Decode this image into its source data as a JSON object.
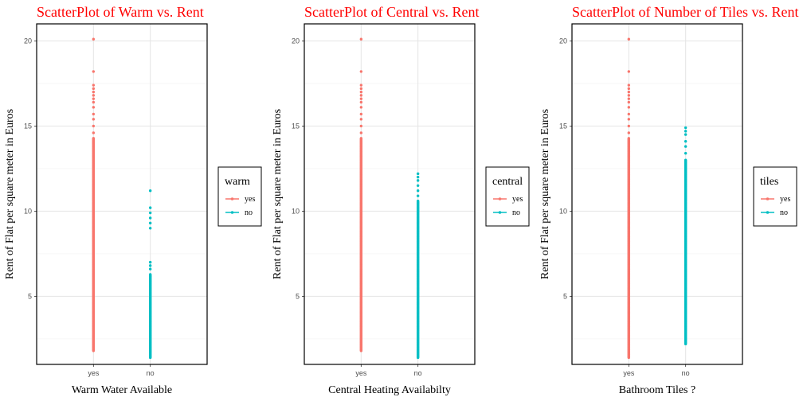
{
  "chart_data": [
    {
      "type": "scatter",
      "title": "ScatterPlot of Warm vs. Rent",
      "xlabel": "Warm Water Available",
      "ylabel": "Rent of Flat per square meter in Euros",
      "categories": [
        "yes",
        "no"
      ],
      "ylim": [
        1.0,
        21.0
      ],
      "yticks": [
        5,
        10,
        15,
        20
      ],
      "grid": true,
      "legend": {
        "title": "warm",
        "position": "right",
        "entries": [
          "yes",
          "no"
        ]
      },
      "series": [
        {
          "name": "yes",
          "color": "#F8766D",
          "x": "yes",
          "min": 1.8,
          "max": 20.1,
          "dense_max": 14.3,
          "sparse": [
            14.6,
            15.0,
            15.4,
            15.7,
            16.1,
            16.4,
            16.6,
            16.8,
            17.0,
            17.2,
            17.4,
            18.2,
            20.1
          ]
        },
        {
          "name": "no",
          "color": "#00BFC4",
          "x": "no",
          "min": 1.4,
          "max": 11.2,
          "dense_max": 6.3,
          "sparse": [
            6.6,
            6.8,
            7.0,
            9.0,
            9.3,
            9.6,
            9.9,
            10.2,
            11.2
          ]
        }
      ]
    },
    {
      "type": "scatter",
      "title": "ScatterPlot of Central vs. Rent",
      "xlabel": "Central Heating Availabilty",
      "ylabel": "Rent of Flat per square meter in Euros",
      "categories": [
        "yes",
        "no"
      ],
      "ylim": [
        1.0,
        21.0
      ],
      "yticks": [
        5,
        10,
        15,
        20
      ],
      "grid": true,
      "legend": {
        "title": "central",
        "position": "right",
        "entries": [
          "yes",
          "no"
        ]
      },
      "series": [
        {
          "name": "yes",
          "color": "#F8766D",
          "x": "yes",
          "min": 1.8,
          "max": 20.1,
          "dense_max": 14.3,
          "sparse": [
            14.6,
            15.0,
            15.4,
            15.7,
            16.1,
            16.4,
            16.6,
            16.8,
            17.0,
            17.2,
            17.4,
            18.2,
            20.1
          ]
        },
        {
          "name": "no",
          "color": "#00BFC4",
          "x": "no",
          "min": 1.4,
          "max": 12.2,
          "dense_max": 10.6,
          "sparse": [
            10.9,
            11.2,
            11.5,
            11.8,
            12.0,
            12.2
          ]
        }
      ]
    },
    {
      "type": "scatter",
      "title": "ScatterPlot of Number of Tiles vs. Rent",
      "xlabel": "Bathroom Tiles ?",
      "ylabel": "Rent of Flat per square meter in Euros",
      "categories": [
        "yes",
        "no"
      ],
      "ylim": [
        1.0,
        21.0
      ],
      "yticks": [
        5,
        10,
        15,
        20
      ],
      "grid": true,
      "legend": {
        "title": "tiles",
        "position": "right",
        "entries": [
          "yes",
          "no"
        ]
      },
      "series": [
        {
          "name": "yes",
          "color": "#F8766D",
          "x": "yes",
          "min": 1.4,
          "max": 20.1,
          "dense_max": 14.3,
          "sparse": [
            14.6,
            15.0,
            15.4,
            15.7,
            16.1,
            16.4,
            16.6,
            16.8,
            17.0,
            17.2,
            17.4,
            18.2,
            20.1
          ]
        },
        {
          "name": "no",
          "color": "#00BFC4",
          "x": "no",
          "min": 2.2,
          "max": 14.9,
          "dense_max": 13.0,
          "sparse": [
            13.4,
            13.8,
            14.1,
            14.5,
            14.7,
            14.9
          ]
        }
      ]
    }
  ]
}
